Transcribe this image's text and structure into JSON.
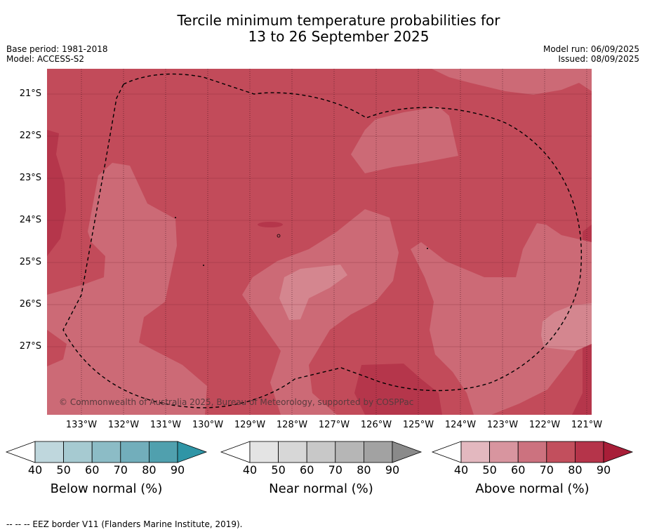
{
  "title_line1": "Tercile minimum temperature probabilities for",
  "title_line2": "13 to 26 September 2025",
  "base_period": "Base period: 1981-2018",
  "model": "Model: ACCESS-S2",
  "model_run": "Model run: 06/09/2025",
  "issued": "Issued: 08/09/2025",
  "map": {
    "lat_labels": [
      "21°S",
      "22°S",
      "23°S",
      "24°S",
      "25°S",
      "26°S",
      "27°S"
    ],
    "lon_labels": [
      "133°W",
      "132°W",
      "131°W",
      "130°W",
      "129°W",
      "128°W",
      "127°W",
      "126°W",
      "125°W",
      "124°W",
      "123°W",
      "122°W",
      "121°W"
    ],
    "copyright": "© Commonwealth of Australia 2025, Bureau of Meteorology, supported by COSPPac",
    "footnote": "--  --  -- EEZ border V11 (Flanders Marine Institute, 2019)."
  },
  "colorbars": [
    {
      "label": "Below normal (%)",
      "ticks": [
        "40",
        "50",
        "60",
        "70",
        "80",
        "90"
      ],
      "colors": [
        "#bfd7dd",
        "#a6cad1",
        "#8cbcc6",
        "#72aebb",
        "#50a0ae",
        "#2f95a6"
      ]
    },
    {
      "label": "Near normal (%)",
      "ticks": [
        "40",
        "50",
        "60",
        "70",
        "80",
        "90"
      ],
      "colors": [
        "#e4e4e4",
        "#d7d7d7",
        "#c8c8c8",
        "#b6b6b6",
        "#a2a2a2",
        "#8a8a8a"
      ]
    },
    {
      "label": "Above normal (%)",
      "ticks": [
        "40",
        "50",
        "60",
        "70",
        "80",
        "90"
      ],
      "colors": [
        "#e3b8bf",
        "#d8959f",
        "#cc727f",
        "#c24f5d",
        "#b5344a",
        "#a81e38"
      ]
    }
  ]
}
